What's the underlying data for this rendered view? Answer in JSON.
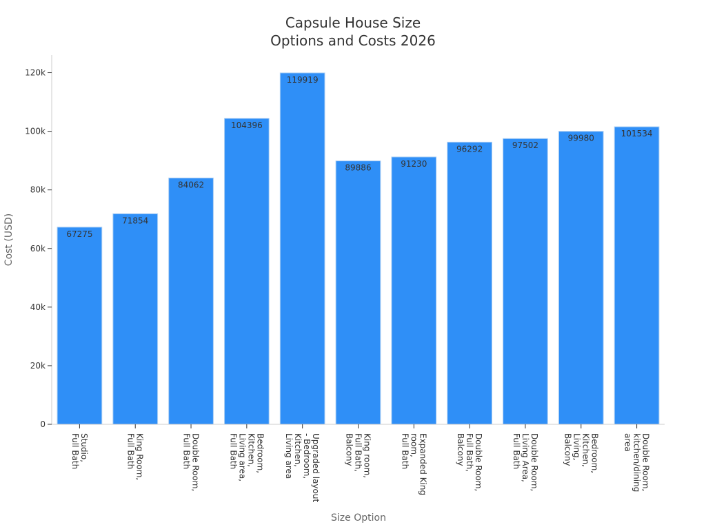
{
  "chart_data": {
    "type": "bar",
    "title_lines": [
      "Capsule House Size",
      "Options and Costs 2026"
    ],
    "xlabel": "Size Option",
    "ylabel": "Cost (USD)",
    "ylim": [
      0,
      126000
    ],
    "yticks": [
      0,
      20000,
      40000,
      60000,
      80000,
      100000,
      120000
    ],
    "ytick_labels": [
      "0",
      "20k",
      "40k",
      "60k",
      "80k",
      "100k",
      "120k"
    ],
    "grid": false,
    "bar_color": "#2f8ff7",
    "bar_edge_color": "#a9cdf3",
    "categories": [
      [
        "Studio,",
        "Full Bath"
      ],
      [
        "King Room,",
        "Full Bath"
      ],
      [
        "Double Room,",
        "Full Bath"
      ],
      [
        "Bedroom,",
        "Kitchen,",
        "Living area,",
        "Full Bath"
      ],
      [
        "Upgraded layout",
        "- Bedroom,",
        "Kitchen,",
        "Living area"
      ],
      [
        "King room,",
        "Full Bath,",
        "Balcony"
      ],
      [
        "Expanded King",
        "room,",
        "Full Bath"
      ],
      [
        "Double Room,",
        "Full Bath,",
        "Balcony"
      ],
      [
        "Double Room,",
        "Living Area,",
        "Full Bath"
      ],
      [
        "Bedroom,",
        "Kitchen,",
        "Living,",
        "Balcony"
      ],
      [
        "Double Room,",
        "kitchen/dining",
        "area"
      ]
    ],
    "values": [
      67275,
      71854,
      84062,
      104396,
      119919,
      89886,
      91230,
      96292,
      97502,
      99980,
      101534
    ]
  }
}
